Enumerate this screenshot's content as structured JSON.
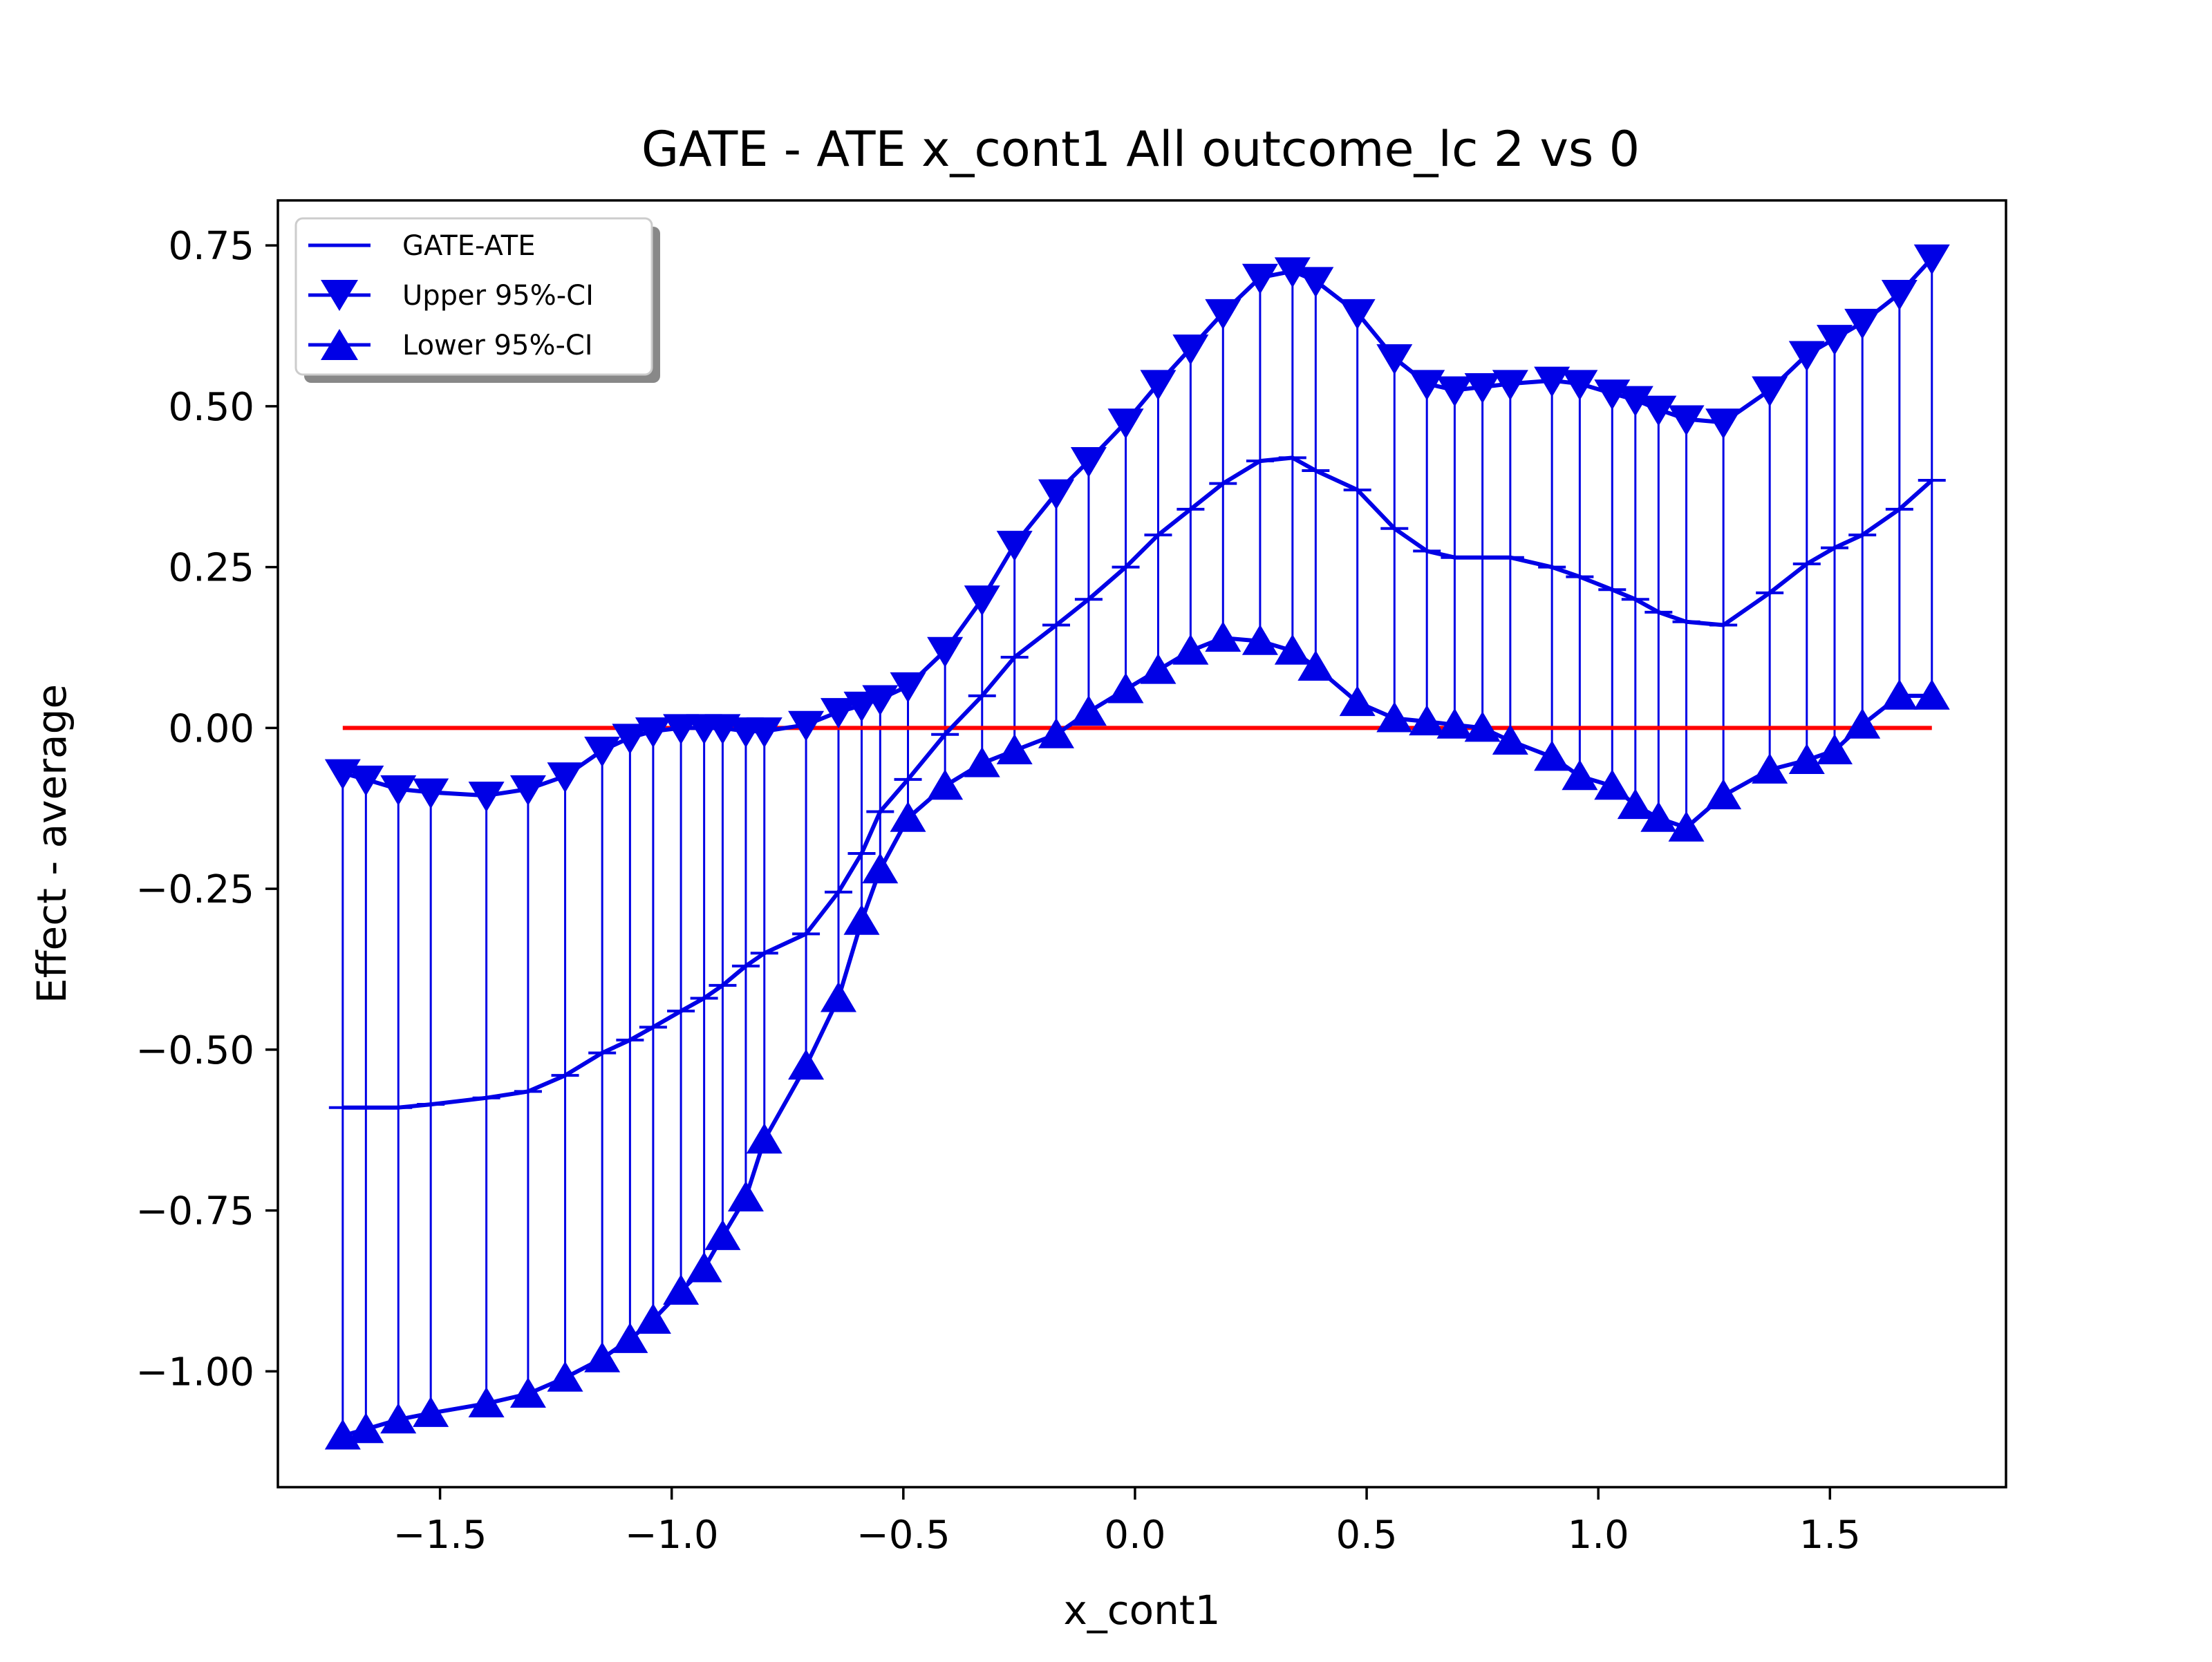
{
  "chart_data": {
    "type": "line",
    "title": "GATE - ATE x_cont1 All outcome_lc  2 vs 0",
    "xlabel": "x_cont1",
    "ylabel": "Effect - average",
    "xlim": [
      -1.85,
      1.88
    ],
    "ylim": [
      -1.18,
      0.82
    ],
    "xticks": [
      -1.5,
      -1.0,
      -0.5,
      0.0,
      0.5,
      1.0,
      1.5
    ],
    "xtick_labels": [
      "−1.5",
      "−1.0",
      "−0.5",
      "0.0",
      "0.5",
      "1.0",
      "1.5"
    ],
    "yticks": [
      0.75,
      0.5,
      0.25,
      0.0,
      -0.25,
      -0.5,
      -0.75,
      -1.0
    ],
    "ytick_labels": [
      "0.75",
      "0.50",
      "0.25",
      "0.00",
      "−0.25",
      "−0.50",
      "−0.75",
      "−1.00"
    ],
    "grid": false,
    "legend_position": "top-left",
    "reference_line": {
      "y": 0.0,
      "x_range": [
        -1.71,
        1.72
      ],
      "color": "#ff0000"
    },
    "x": [
      -1.71,
      -1.66,
      -1.59,
      -1.52,
      -1.4,
      -1.31,
      -1.23,
      -1.15,
      -1.09,
      -1.04,
      -0.98,
      -0.93,
      -0.89,
      -0.84,
      -0.8,
      -0.71,
      -0.64,
      -0.59,
      -0.55,
      -0.49,
      -0.41,
      -0.33,
      -0.26,
      -0.17,
      -0.1,
      -0.02,
      0.05,
      0.12,
      0.19,
      0.27,
      0.34,
      0.39,
      0.48,
      0.56,
      0.63,
      0.69,
      0.75,
      0.81,
      0.9,
      0.96,
      1.03,
      1.08,
      1.13,
      1.19,
      1.27,
      1.37,
      1.45,
      1.51,
      1.57,
      1.65,
      1.72
    ],
    "series": [
      {
        "name": "GATE-ATE",
        "color": "#0000e6",
        "marker": "none",
        "values": [
          -0.59,
          -0.59,
          -0.59,
          -0.585,
          -0.575,
          -0.565,
          -0.54,
          -0.505,
          -0.485,
          -0.465,
          -0.44,
          -0.42,
          -0.4,
          -0.37,
          -0.35,
          -0.32,
          -0.255,
          -0.195,
          -0.13,
          -0.08,
          -0.01,
          0.05,
          0.11,
          0.16,
          0.2,
          0.25,
          0.3,
          0.34,
          0.38,
          0.415,
          0.42,
          0.4,
          0.37,
          0.31,
          0.275,
          0.265,
          0.265,
          0.265,
          0.25,
          0.235,
          0.215,
          0.2,
          0.18,
          0.165,
          0.16,
          0.21,
          0.255,
          0.28,
          0.3,
          0.34,
          0.385
        ]
      },
      {
        "name": "Upper 95%-CI",
        "color": "#0000e6",
        "marker": "triangle-down",
        "values": [
          -0.07,
          -0.08,
          -0.095,
          -0.1,
          -0.105,
          -0.095,
          -0.075,
          -0.035,
          -0.015,
          -0.005,
          0.0,
          0.0,
          0.0,
          -0.005,
          -0.005,
          0.005,
          0.025,
          0.035,
          0.045,
          0.065,
          0.12,
          0.2,
          0.285,
          0.365,
          0.415,
          0.475,
          0.535,
          0.59,
          0.645,
          0.7,
          0.71,
          0.695,
          0.645,
          0.575,
          0.535,
          0.525,
          0.53,
          0.535,
          0.54,
          0.535,
          0.52,
          0.51,
          0.495,
          0.48,
          0.475,
          0.525,
          0.58,
          0.605,
          0.63,
          0.675,
          0.73
        ]
      },
      {
        "name": "Lower 95%-CI",
        "color": "#0000e6",
        "marker": "triangle-up",
        "values": [
          -1.1,
          -1.09,
          -1.075,
          -1.065,
          -1.05,
          -1.035,
          -1.01,
          -0.98,
          -0.95,
          -0.92,
          -0.875,
          -0.84,
          -0.79,
          -0.73,
          -0.64,
          -0.525,
          -0.42,
          -0.3,
          -0.22,
          -0.14,
          -0.09,
          -0.055,
          -0.035,
          -0.01,
          0.025,
          0.06,
          0.09,
          0.12,
          0.14,
          0.135,
          0.12,
          0.095,
          0.04,
          0.015,
          0.01,
          0.005,
          0.0,
          -0.02,
          -0.045,
          -0.075,
          -0.09,
          -0.12,
          -0.14,
          -0.155,
          -0.105,
          -0.065,
          -0.05,
          -0.035,
          0.005,
          0.05,
          0.05
        ]
      }
    ]
  }
}
